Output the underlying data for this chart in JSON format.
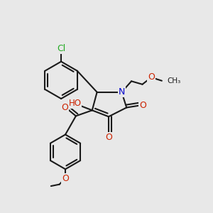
{
  "bg_color": "#e8e8e8",
  "bond_color": "#1a1a1a",
  "bond_width": 1.5,
  "atom_colors": {
    "C": "#1a1a1a",
    "H": "#4a9a9a",
    "O": "#cc2200",
    "N": "#0000cc",
    "Cl": "#22aa22"
  },
  "font_size_atom": 9,
  "font_size_small": 7.5,
  "fig_size": [
    3.0,
    3.0
  ],
  "dpi": 100
}
